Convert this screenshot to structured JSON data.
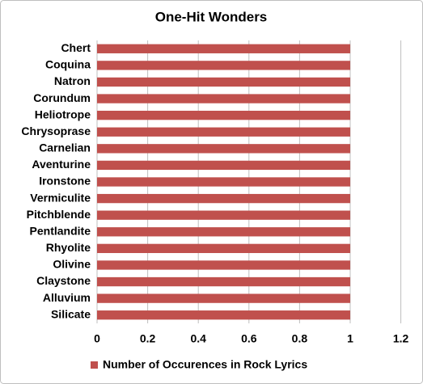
{
  "chart_data": {
    "type": "bar",
    "orientation": "horizontal",
    "title": "One-Hit Wonders",
    "categories": [
      "Chert",
      "Coquina",
      "Natron",
      "Corundum",
      "Heliotrope",
      "Chrysoprase",
      "Carnelian",
      "Aventurine",
      "Ironstone",
      "Vermiculite",
      "Pitchblende",
      "Pentlandite",
      "Rhyolite",
      "Olivine",
      "Claystone",
      "Alluvium",
      "Silicate"
    ],
    "series": [
      {
        "name": "Number of Occurences in Rock Lyrics",
        "color": "#c0504d",
        "values": [
          1,
          1,
          1,
          1,
          1,
          1,
          1,
          1,
          1,
          1,
          1,
          1,
          1,
          1,
          1,
          1,
          1
        ]
      }
    ],
    "xlim": [
      0,
      1.2
    ],
    "xticks": [
      0,
      0.2,
      0.4,
      0.6,
      0.8,
      1,
      1.2
    ],
    "grid": true,
    "legend": "bottom"
  }
}
